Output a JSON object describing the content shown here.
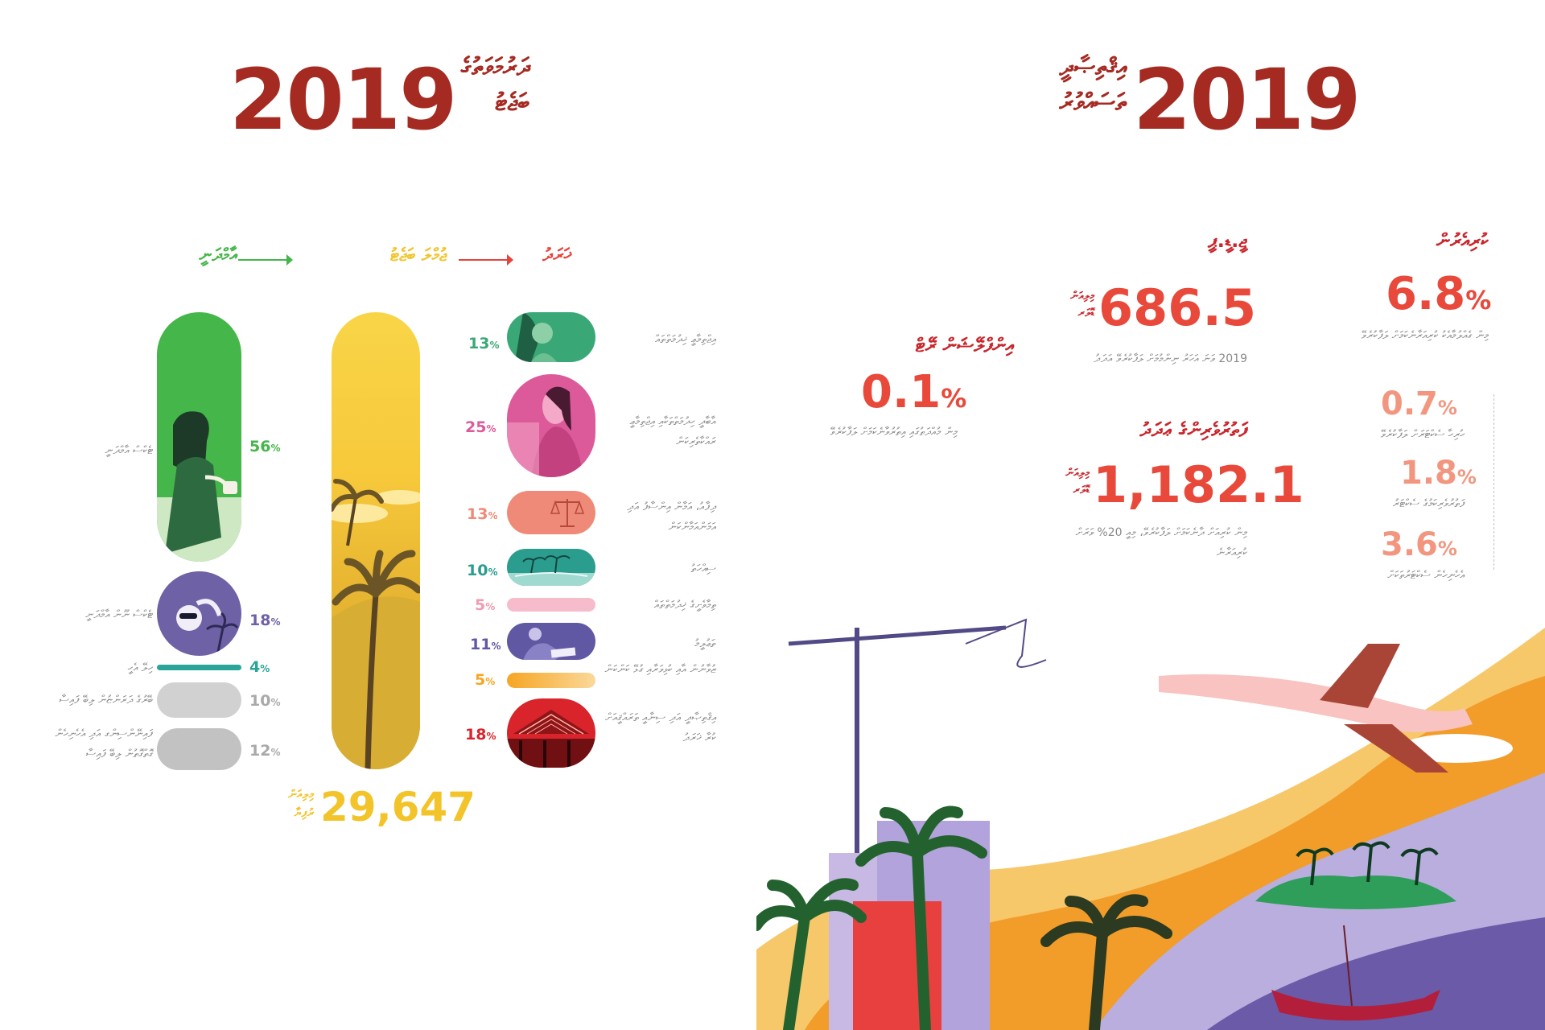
{
  "left": {
    "year": "2019",
    "title_line1": "ދަރުމަވަތުގެ",
    "title_line2": "ބަޖެޓު",
    "flow": {
      "to_label": "ޚަރަދު",
      "mid_label": "ޖުމްލަ ބަޖެޓު",
      "from_label": "އާމްދަނީ"
    },
    "income": [
      {
        "label": "ޓެކްސް އާމްދަނީ",
        "pct": "56",
        "color": "#45b649"
      },
      {
        "label": "ޓެކްސް ނޫން އާމްދަނީ",
        "pct": "18",
        "color": "#6f61a6"
      },
      {
        "label": "ހިލޭ އެހީ",
        "pct": "4",
        "color": "#2aa59a"
      },
      {
        "label": "ބޭރުގެ ދަރަންޏުން ލިބޭ ފައިސާ",
        "pct": "10",
        "color": "#c9c9c9"
      },
      {
        "label": "ފައިނޭންސިންގ އަދި އެހެނިހެން ގޮތްގޮތުން ލިބޭ ފައިސާ",
        "pct": "12",
        "color": "#bdbdbd"
      }
    ],
    "expenses": [
      {
        "label": "އިޖްތިމާޢީ ޚިދުމަތްތައް",
        "pct": "13",
        "color": "#3aa876"
      },
      {
        "label": "އާބާދީ ހިދުމަތްތަކާއި އިޖްތިމާޢީ ރައްކާތެރިކަން",
        "pct": "25",
        "color": "#dd5a9a"
      },
      {
        "label": "ދިފާއު، އަމާން އިންސާފު އަދި އަމަންއަމާންކަން",
        "pct": "13",
        "color": "#ee8a77"
      },
      {
        "label": "ސިއްހަތު",
        "pct": "10",
        "color": "#2a9d8f"
      },
      {
        "label": "ތިމާވެށީގެ ޚިދުމަތްތައް",
        "pct": "5",
        "color": "#f29ab1"
      },
      {
        "label": "ތަޢުލީމު",
        "pct": "11",
        "color": "#6158a4"
      },
      {
        "label": "ޒުވާނުން އާއި ކުޅިވަރާއި ގުޅޭ ކަންކަން",
        "pct": "5",
        "color": "#f6a623"
      },
      {
        "label": "އިޤްތިޞާދީ އަދި ސިނާއީ ތަރައްޤީއަށް ކުރާ ޚަރަދު",
        "pct": "18",
        "color": "#d8242a"
      }
    ],
    "total_label_line1": "މިލިއަން",
    "total_label_line2": "ރުފިޔާ",
    "total_value": "29,647"
  },
  "right": {
    "year": "2019",
    "title_line1": "އިޤްތިޞާދީ",
    "title_line2": "ތަސައްވުރު",
    "growth": {
      "head": "ކުރިއެރުން",
      "value": "6.8",
      "desc": "މިން ގެއްލުމާއެކު ކުރިއަރާނެކަމަށް ލަފާކުރެވޭ",
      "sub": [
        {
          "value": "0.7",
          "desc": "ހުރިހާ ސެކްޓަރަށް ލަފާކުރެވޭ"
        },
        {
          "value": "1.8",
          "desc": "ފަތުރުވެރިކަމުގެ ސެކްޓަރު"
        },
        {
          "value": "3.6",
          "desc": "އެހެނިހެން ސެކްޓަރުތަކަށް"
        }
      ]
    },
    "gdp": {
      "head": "ޖީ.ޑީ.ޕީ",
      "unit_line1": "މިލިއަން",
      "unit_line2": "ޑޮލަރ",
      "value": "686.5",
      "desc": "2019 ވަނަ އަހަރު ނިންމުމަށް ލަފާކުރެވޭ އަދަދު"
    },
    "tourism": {
      "head": "ފަތުރުވެރިންގެ ޢަދަދު",
      "unit_line1": "މިލިއަން",
      "unit_line2": "ޑޮލަރ",
      "value": "1,182.1",
      "desc": "މިން ކުރިއަށް ދާނެކަމަށް ލަފާކުރެވޭ، މިއީ 20% ވަރަށް ކުރިއަރާނެ"
    },
    "inflation": {
      "head": "އިންފްލޭޝަން ރޭޓް",
      "value": "0.1",
      "desc": "މިން މުއްދަތުގައި އިތުރުވާނެކަމަށް ލަފާކުރެވޭ"
    }
  }
}
